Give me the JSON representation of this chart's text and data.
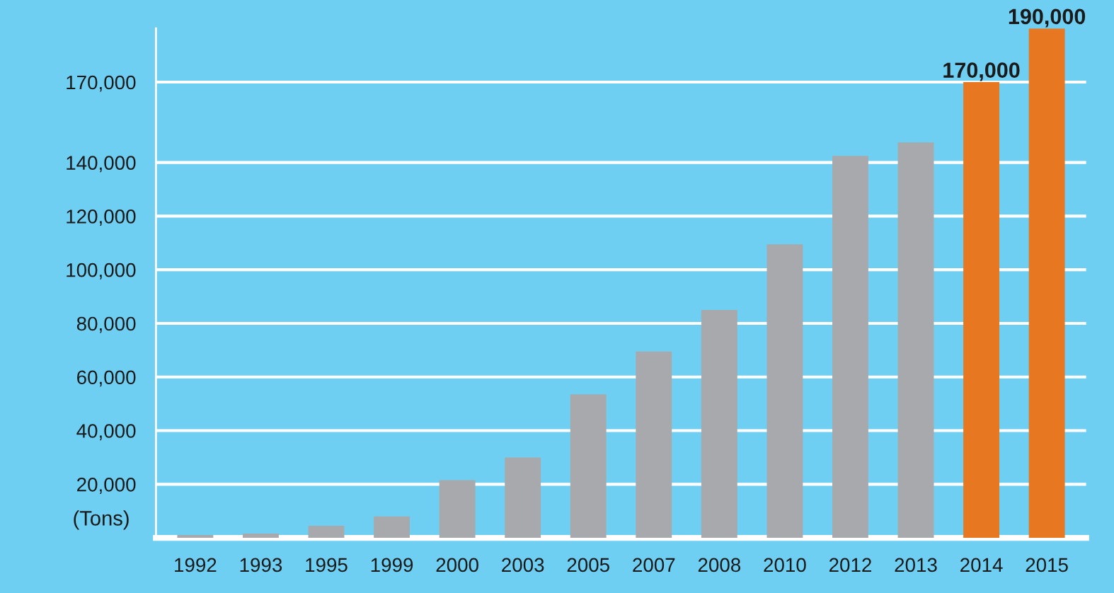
{
  "chart_data": {
    "type": "bar",
    "ylabel": "(Tons)",
    "categories": [
      "1992",
      "1993",
      "1995",
      "1999",
      "2000",
      "2003",
      "2005",
      "2007",
      "2008",
      "2010",
      "2012",
      "2013",
      "2014",
      "2015"
    ],
    "values": [
      1100,
      1600,
      4500,
      8000,
      21500,
      30000,
      53500,
      69500,
      85000,
      109500,
      142500,
      147500,
      170000,
      190000
    ],
    "colors": [
      "#a7a9ac",
      "#a7a9ac",
      "#a7a9ac",
      "#a7a9ac",
      "#a7a9ac",
      "#a7a9ac",
      "#a7a9ac",
      "#a7a9ac",
      "#a7a9ac",
      "#a7a9ac",
      "#a7a9ac",
      "#a7a9ac",
      "#e87722",
      "#e87722"
    ],
    "value_labels": [
      null,
      null,
      null,
      null,
      null,
      null,
      null,
      null,
      null,
      null,
      null,
      null,
      "170,000",
      "190,000"
    ],
    "ylim": [
      0,
      190000
    ],
    "yticks": [
      {
        "value": 20000,
        "label": "20,000"
      },
      {
        "value": 40000,
        "label": "40,000"
      },
      {
        "value": 60000,
        "label": "60,000"
      },
      {
        "value": 80000,
        "label": "80,000"
      },
      {
        "value": 100000,
        "label": "100,000"
      },
      {
        "value": 120000,
        "label": "120,000"
      },
      {
        "value": 140000,
        "label": "140,000"
      },
      {
        "value": 170000,
        "label": "170,000"
      }
    ],
    "grid": "y",
    "legend": false
  }
}
